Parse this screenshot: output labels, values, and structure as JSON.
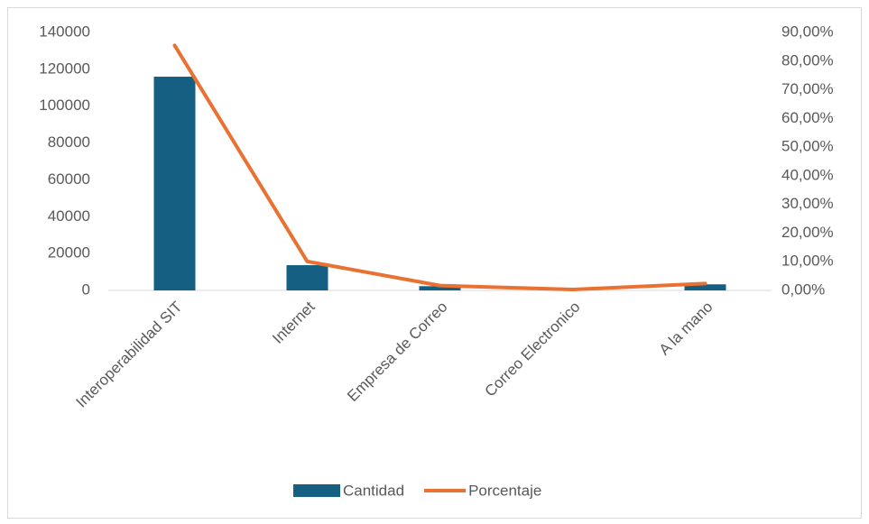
{
  "chart_data": {
    "type": "bar",
    "categories": [
      "Interoperabilidad SIT",
      "Internet",
      "Empresa de Correo",
      "Correo Electronico",
      "A la mano"
    ],
    "series": [
      {
        "name": "Cantidad",
        "type": "bar",
        "color": "#156082",
        "values": [
          116000,
          13700,
          2300,
          400,
          3300
        ]
      },
      {
        "name": "Porcentaje",
        "type": "line",
        "axis": "y2",
        "color": "#e97132",
        "values": [
          85.5,
          10.1,
          1.7,
          0.3,
          2.4
        ]
      }
    ],
    "ylim": [
      0,
      140000
    ],
    "yticks": [
      0,
      20000,
      40000,
      60000,
      80000,
      100000,
      120000,
      140000
    ],
    "y2lim": [
      0,
      90
    ],
    "y2ticks": [
      {
        "value": 0,
        "label": "0,00%"
      },
      {
        "value": 10,
        "label": "10,00%"
      },
      {
        "value": 20,
        "label": "20,00%"
      },
      {
        "value": 30,
        "label": "30,00%"
      },
      {
        "value": 40,
        "label": "40,00%"
      },
      {
        "value": 50,
        "label": "50,00%"
      },
      {
        "value": 60,
        "label": "60,00%"
      },
      {
        "value": 70,
        "label": "70,00%"
      },
      {
        "value": 80,
        "label": "80,00%"
      },
      {
        "value": 90,
        "label": "90,00%"
      }
    ],
    "grid": false,
    "legend": "bottom"
  }
}
